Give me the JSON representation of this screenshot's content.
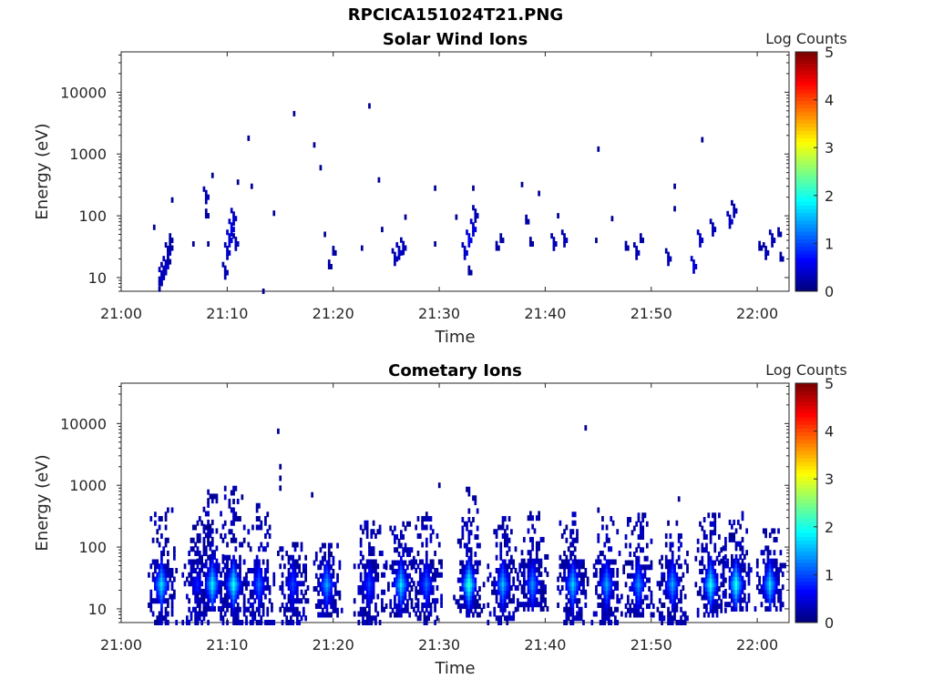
{
  "figure_title": "RPCICA151024T21.PNG",
  "chart_data": [
    {
      "type": "heatmap",
      "title": "Solar Wind Ions",
      "xlabel": "Time",
      "ylabel": "Energy (eV)",
      "x_ticks": [
        "21:00",
        "21:10",
        "21:20",
        "21:30",
        "21:40",
        "21:50",
        "22:00"
      ],
      "xlim": [
        "21:00",
        "22:03"
      ],
      "y_scale": "log",
      "y_ticks": [
        "10",
        "100",
        "1000",
        "10000"
      ],
      "ylim": [
        6,
        45000
      ],
      "colorbar": {
        "label": "Log Counts",
        "range": [
          0,
          5
        ],
        "ticks": [
          "0",
          "1",
          "2",
          "3",
          "4",
          "5"
        ],
        "colormap": "jet"
      },
      "cells": [
        [
          "21:03.6",
          6.5,
          0.1
        ],
        [
          "21:03.6",
          8,
          0.2
        ],
        [
          "21:03.8",
          10,
          0.4
        ],
        [
          "21:04.0",
          12,
          0.3
        ],
        [
          "21:04.2",
          15,
          0.4
        ],
        [
          "21:04.4",
          18,
          0.2
        ],
        [
          "21:04.4",
          25,
          0.3
        ],
        [
          "21:04.6",
          30,
          0.2
        ],
        [
          "21:04.6",
          40,
          0.2
        ],
        [
          "21:03.1",
          65,
          0.1
        ],
        [
          "21:04.8",
          180,
          0.1
        ],
        [
          "21:06.8",
          35,
          0.1
        ],
        [
          "21:08.0",
          200,
          0.3
        ],
        [
          "21:08.0",
          100,
          0.2
        ],
        [
          "21:08.2",
          35,
          0.1
        ],
        [
          "21:08.6",
          450,
          0.1
        ],
        [
          "21:09.8",
          12,
          0.3
        ],
        [
          "21:10.0",
          25,
          0.4
        ],
        [
          "21:10.2",
          40,
          0.5
        ],
        [
          "21:10.4",
          60,
          0.6
        ],
        [
          "21:10.6",
          90,
          0.4
        ],
        [
          "21:10.8",
          35,
          0.3
        ],
        [
          "21:11.0",
          350,
          0.1
        ],
        [
          "21:12.0",
          1800,
          0.1
        ],
        [
          "21:12.3",
          300,
          0.1
        ],
        [
          "21:13.4",
          6,
          0.1
        ],
        [
          "21:14.4",
          110,
          0.1
        ],
        [
          "21:16.3",
          4500,
          0.1
        ],
        [
          "21:18.2",
          1400,
          0.1
        ],
        [
          "21:18.8",
          600,
          0.1
        ],
        [
          "21:19.2",
          50,
          0.1
        ],
        [
          "21:19.6",
          15,
          0.2
        ],
        [
          "21:20.0",
          25,
          0.2
        ],
        [
          "21:22.7",
          30,
          0.1
        ],
        [
          "21:23.4",
          6000,
          0.1
        ],
        [
          "21:24.3",
          380,
          0.1
        ],
        [
          "21:24.6",
          60,
          0.1
        ],
        [
          "21:25.8",
          20,
          0.3
        ],
        [
          "21:26.2",
          25,
          0.4
        ],
        [
          "21:26.6",
          30,
          0.3
        ],
        [
          "21:26.8",
          95,
          0.1
        ],
        [
          "21:29.6",
          280,
          0.1
        ],
        [
          "21:29.6",
          35,
          0.1
        ],
        [
          "21:31.6",
          95,
          0.1
        ],
        [
          "21:32.4",
          25,
          0.4
        ],
        [
          "21:32.8",
          40,
          0.6
        ],
        [
          "21:33.2",
          60,
          0.5
        ],
        [
          "21:33.4",
          100,
          0.3
        ],
        [
          "21:32.8",
          12,
          0.2
        ],
        [
          "21:33.2",
          280,
          0.1
        ],
        [
          "21:35.4",
          30,
          0.2
        ],
        [
          "21:35.8",
          40,
          0.2
        ],
        [
          "21:37.8",
          320,
          0.1
        ],
        [
          "21:38.2",
          80,
          0.2
        ],
        [
          "21:38.6",
          35,
          0.2
        ],
        [
          "21:39.4",
          230,
          0.1
        ],
        [
          "21:40.8",
          35,
          0.3
        ],
        [
          "21:41.2",
          100,
          0.1
        ],
        [
          "21:41.8",
          40,
          0.3
        ],
        [
          "21:45.0",
          1200,
          0.1
        ],
        [
          "21:44.8",
          40,
          0.1
        ],
        [
          "21:46.3",
          90,
          0.1
        ],
        [
          "21:47.6",
          30,
          0.2
        ],
        [
          "21:48.6",
          25,
          0.3
        ],
        [
          "21:49.0",
          40,
          0.2
        ],
        [
          "21:51.6",
          20,
          0.3
        ],
        [
          "21:52.2",
          300,
          0.1
        ],
        [
          "21:52.2",
          130,
          0.1
        ],
        [
          "21:54.0",
          15,
          0.5
        ],
        [
          "21:54.6",
          40,
          0.4
        ],
        [
          "21:54.8",
          1700,
          0.1
        ],
        [
          "21:55.8",
          60,
          0.3
        ],
        [
          "21:57.4",
          80,
          0.4
        ],
        [
          "21:57.8",
          120,
          0.3
        ],
        [
          "22:00.2",
          30,
          0.2
        ],
        [
          "22:00.8",
          25,
          0.3
        ],
        [
          "22:01.4",
          40,
          0.3
        ],
        [
          "22:02.0",
          50,
          0.2
        ],
        [
          "22:02.2",
          20,
          0.2
        ]
      ]
    },
    {
      "type": "heatmap",
      "title": "Cometary Ions",
      "xlabel": "Time",
      "ylabel": "Energy (eV)",
      "x_ticks": [
        "21:00",
        "21:10",
        "21:20",
        "21:30",
        "21:40",
        "21:50",
        "22:00"
      ],
      "xlim": [
        "21:00",
        "22:03"
      ],
      "y_scale": "log",
      "y_ticks": [
        "10",
        "100",
        "1000",
        "10000"
      ],
      "ylim": [
        6,
        45000
      ],
      "colorbar": {
        "label": "Log Counts",
        "range": [
          0,
          5
        ],
        "ticks": [
          "0",
          "1",
          "2",
          "3",
          "4",
          "5"
        ],
        "colormap": "jet"
      },
      "clusters": [
        {
          "center": "21:03.8",
          "emin": 6,
          "emax": 400,
          "peak": 1.8
        },
        {
          "center": "21:07.2",
          "emin": 6,
          "emax": 300,
          "peak": 0.8
        },
        {
          "center": "21:08.6",
          "emin": 10,
          "emax": 900,
          "peak": 1.9
        },
        {
          "center": "21:10.6",
          "emin": 6,
          "emax": 1000,
          "peak": 2.0
        },
        {
          "center": "21:13.0",
          "emin": 6,
          "emax": 600,
          "peak": 1.2
        },
        {
          "center": "21:16.2",
          "emin": 6,
          "emax": 120,
          "peak": 1.0
        },
        {
          "center": "21:19.4",
          "emin": 8,
          "emax": 120,
          "peak": 1.5
        },
        {
          "center": "21:23.4",
          "emin": 6,
          "emax": 250,
          "peak": 1.0
        },
        {
          "center": "21:26.4",
          "emin": 8,
          "emax": 250,
          "peak": 1.8
        },
        {
          "center": "21:28.8",
          "emin": 6,
          "emax": 350,
          "peak": 1.2
        },
        {
          "center": "21:32.8",
          "emin": 8,
          "emax": 1000,
          "peak": 2.2
        },
        {
          "center": "21:36.0",
          "emin": 6,
          "emax": 350,
          "peak": 1.6
        },
        {
          "center": "21:38.8",
          "emin": 10,
          "emax": 350,
          "peak": 1.4
        },
        {
          "center": "21:42.6",
          "emin": 6,
          "emax": 350,
          "peak": 1.7
        },
        {
          "center": "21:45.8",
          "emin": 6,
          "emax": 400,
          "peak": 1.5
        },
        {
          "center": "21:48.8",
          "emin": 8,
          "emax": 350,
          "peak": 1.4
        },
        {
          "center": "21:52.0",
          "emin": 6,
          "emax": 300,
          "peak": 1.5
        },
        {
          "center": "21:55.6",
          "emin": 8,
          "emax": 350,
          "peak": 2.0
        },
        {
          "center": "21:58.0",
          "emin": 10,
          "emax": 350,
          "peak": 2.1
        },
        {
          "center": "22:01.2",
          "emin": 10,
          "emax": 200,
          "peak": 1.8
        }
      ],
      "isolated_cells": [
        [
          "21:14.8",
          7500,
          0.1
        ],
        [
          "21:15.0",
          2000,
          0.1
        ],
        [
          "21:15.0",
          1300,
          0.1
        ],
        [
          "21:15.0",
          900,
          0.1
        ],
        [
          "21:18.0",
          700,
          0.1
        ],
        [
          "21:30.0",
          1000,
          0.1
        ],
        [
          "21:43.8",
          8500,
          0.1
        ],
        [
          "21:52.6",
          600,
          0.1
        ]
      ]
    }
  ]
}
